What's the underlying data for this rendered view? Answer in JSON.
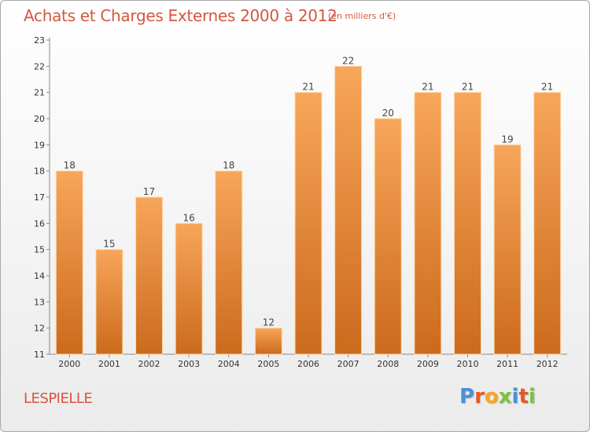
{
  "header": {
    "title": "Achats et Charges Externes 2000 à 2012",
    "subtitle": "(en milliers d'€)"
  },
  "footer": {
    "commune": "LESPIELLE",
    "logo_text": "Proxiti",
    "logo_colors": [
      "#4a90d9",
      "#e8572a",
      "#f5a623",
      "#7cc242",
      "#4a90d9",
      "#e8572a",
      "#7cc242"
    ]
  },
  "chart_data": {
    "type": "bar",
    "categories": [
      "2000",
      "2001",
      "2002",
      "2003",
      "2004",
      "2005",
      "2006",
      "2007",
      "2008",
      "2009",
      "2010",
      "2011",
      "2012"
    ],
    "values": [
      18,
      15,
      17,
      16,
      18,
      12,
      21,
      22,
      20,
      21,
      21,
      19,
      21
    ],
    "title": "Achats et Charges Externes 2000 à 2012",
    "subtitle": "(en milliers d'€)",
    "ylim": [
      11,
      23
    ],
    "yticks": [
      "11",
      "12",
      "13",
      "14",
      "15",
      "16",
      "17",
      "18",
      "19",
      "20",
      "21",
      "22",
      "23"
    ],
    "grid": false,
    "colors": {
      "bar_top": "#f7a65a",
      "bar_bottom": "#cc6a1c",
      "bar_edge": "#ffd9a8"
    }
  }
}
